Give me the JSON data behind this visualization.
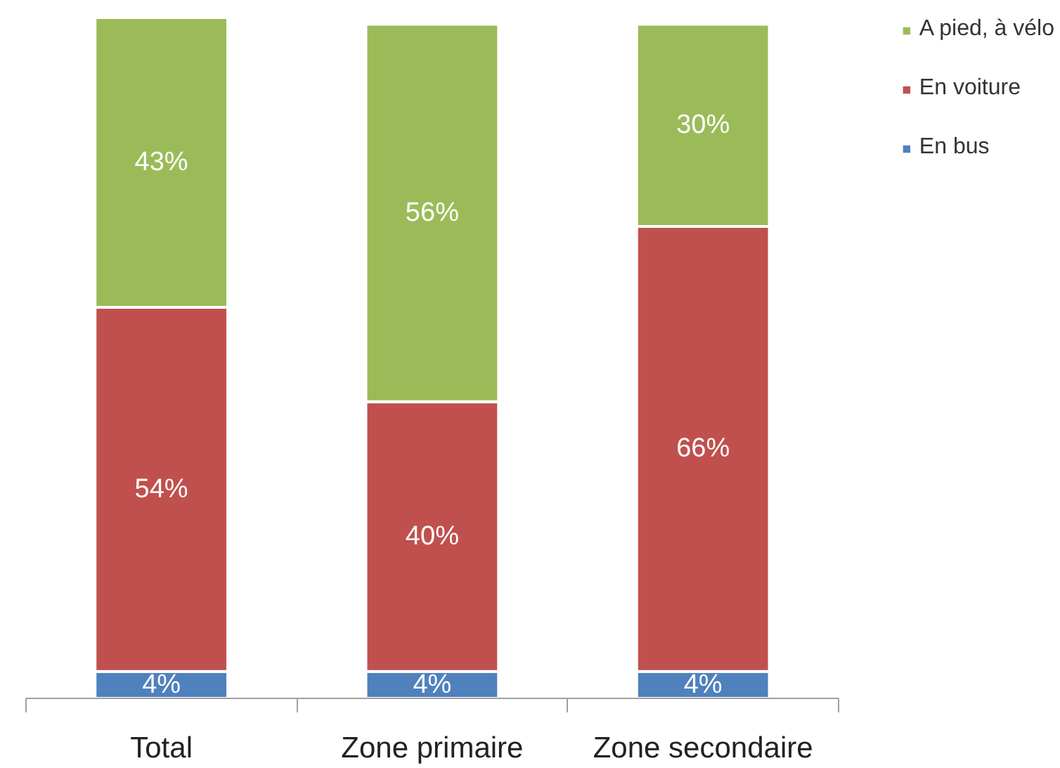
{
  "chart_data": {
    "type": "bar",
    "stacked": true,
    "legend": "top right",
    "grid": false,
    "categories": [
      "Total",
      "Zone primaire",
      "Zone secondaire"
    ],
    "series": [
      {
        "name": "En bus",
        "color": "#4f81bd",
        "values": [
          4,
          4,
          4
        ],
        "value_labels": [
          "4%",
          "4%",
          "4%"
        ]
      },
      {
        "name": "En voiture",
        "color": "#c0504d",
        "values": [
          54,
          40,
          66
        ],
        "value_labels": [
          "54%",
          "40%",
          "66%"
        ]
      },
      {
        "name": "A pied, à vélo",
        "color": "#9bbb59",
        "values": [
          43,
          56,
          30
        ],
        "value_labels": [
          "43%",
          "56%",
          "30%"
        ]
      }
    ]
  }
}
